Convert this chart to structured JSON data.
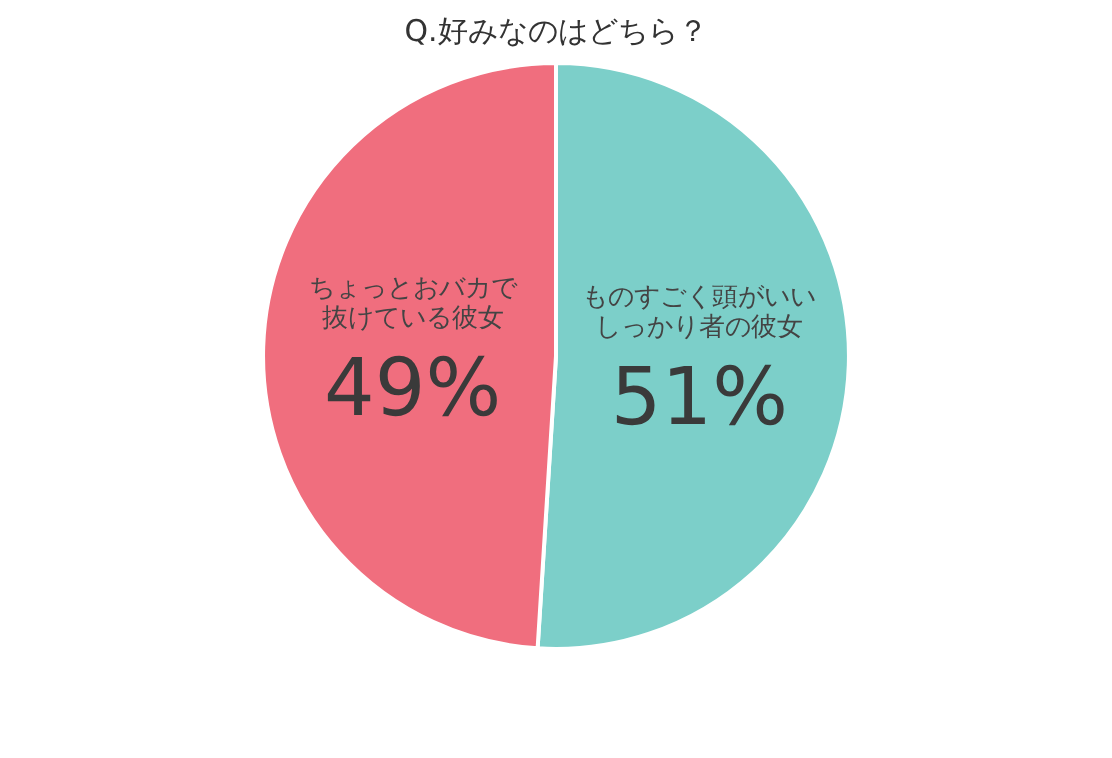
{
  "chart_data": {
    "type": "pie",
    "title": "Q.好みなのはどちら？",
    "categories": [
      "ものすごく頭がいいしっかり者の彼女",
      "ちょっとおバカで抜けている彼女"
    ],
    "values": [
      51,
      49
    ],
    "colors": [
      "#7ccfc9",
      "#f06e7e"
    ],
    "value_labels": [
      "51%",
      "49%"
    ],
    "legend": false
  }
}
